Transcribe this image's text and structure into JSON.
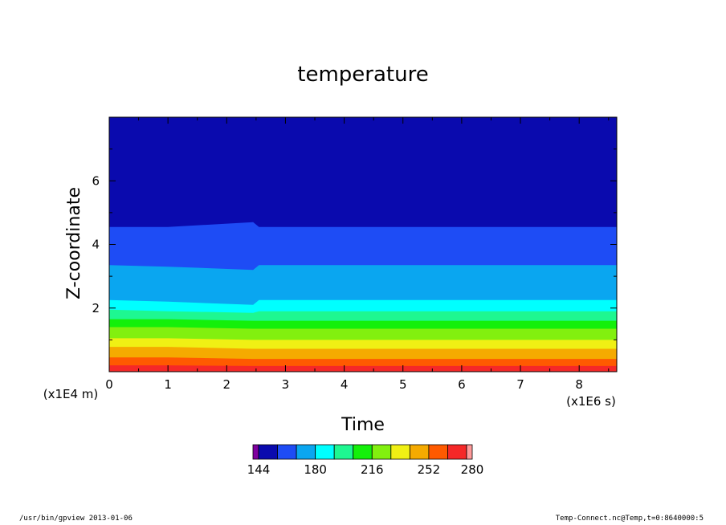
{
  "chart_data": {
    "type": "heatmap",
    "title": "temperature",
    "xlabel": "Time",
    "ylabel": "Z-coordinate",
    "x_scale_label": "(x1E6 s)",
    "y_scale_label": "(x1E4 m)",
    "xlim": [
      0,
      8.64
    ],
    "ylim": [
      0,
      8.0
    ],
    "x_ticks": [
      "0",
      "1",
      "2",
      "3",
      "4",
      "5",
      "6",
      "7",
      "8"
    ],
    "y_ticks": [
      "2",
      "4",
      "6"
    ],
    "colorbar": {
      "min": 144,
      "max": 280,
      "interval": 12,
      "tick_labels": [
        "144",
        "180",
        "216",
        "252",
        "280"
      ],
      "colors": [
        "#7f009f",
        "#0a0aae",
        "#1e4cf5",
        "#0aa6f0",
        "#00ffff",
        "#1ef791",
        "#14f00a",
        "#82f00f",
        "#f0f014",
        "#f5aa00",
        "#ff5a00",
        "#f52828",
        "#ff9a9a"
      ]
    },
    "contour_boundaries_z": [
      {
        "value": 156,
        "z": [
          4.55,
          4.55,
          4.7,
          4.55,
          4.55
        ]
      },
      {
        "value": 168,
        "z": [
          3.35,
          3.3,
          3.2,
          3.35,
          3.35
        ]
      },
      {
        "value": 180,
        "z": [
          2.25,
          2.2,
          2.1,
          2.25,
          2.25
        ]
      },
      {
        "value": 192,
        "z": [
          1.95,
          1.9,
          1.85,
          1.9,
          1.9
        ]
      },
      {
        "value": 204,
        "z": [
          1.65,
          1.65,
          1.6,
          1.6,
          1.6
        ]
      },
      {
        "value": 216,
        "z": [
          1.4,
          1.4,
          1.35,
          1.35,
          1.35
        ]
      },
      {
        "value": 228,
        "z": [
          1.05,
          1.05,
          1.0,
          1.0,
          1.0
        ]
      },
      {
        "value": 240,
        "z": [
          0.78,
          0.78,
          0.72,
          0.72,
          0.72
        ]
      },
      {
        "value": 252,
        "z": [
          0.45,
          0.45,
          0.4,
          0.4,
          0.4
        ]
      },
      {
        "value": 264,
        "z": [
          0.2,
          0.2,
          0.18,
          0.18,
          0.18
        ]
      }
    ],
    "contour_x": [
      0,
      1.0,
      2.45,
      2.55,
      8.64
    ]
  },
  "footer": {
    "left": "/usr/bin/gpview   2013-01-06",
    "right": "Temp-Connect.nc@Temp,t=0:8640000:5"
  }
}
